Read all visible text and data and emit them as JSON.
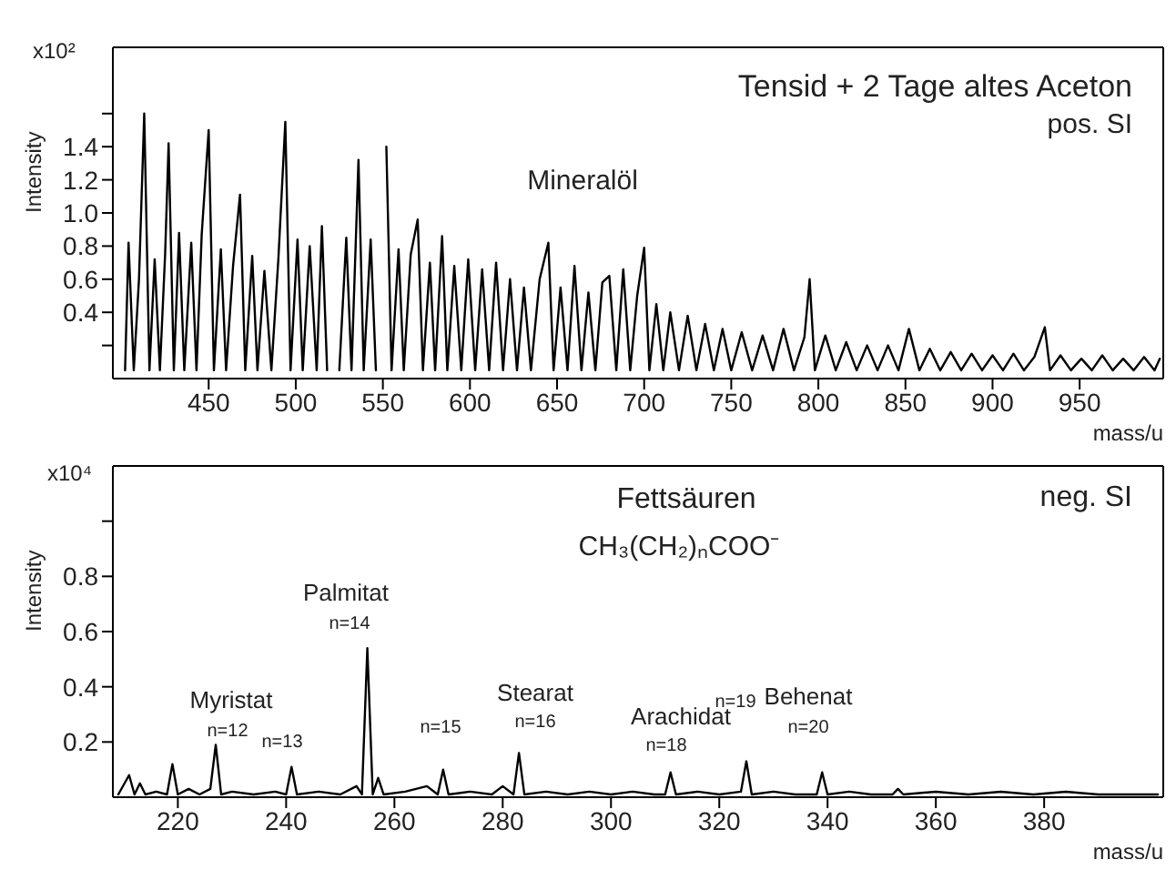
{
  "chart_data": [
    {
      "type": "line",
      "ylabel": "Intensity",
      "xlabel": "mass/u",
      "marker": "none",
      "xlim": [
        395,
        998
      ],
      "ylim": [
        0,
        2.0
      ],
      "xticks": [
        450,
        500,
        550,
        600,
        650,
        700,
        750,
        800,
        850,
        900,
        950
      ],
      "yticks": [
        {
          "value": 0.2,
          "label": null
        },
        {
          "value": 0.4,
          "label": "0.4"
        },
        {
          "value": 0.6,
          "label": "0.6"
        },
        {
          "value": 0.8,
          "label": "0.8"
        },
        {
          "value": 1.0,
          "label": "1.0"
        },
        {
          "value": 1.2,
          "label": "1.2"
        },
        {
          "value": 1.4,
          "label": "1.4"
        },
        {
          "value": 1.6,
          "label": null
        }
      ],
      "annotations": [
        "x10²",
        "Tensid + 2 Tage altes Aceton",
        "pos. SI",
        "Mineralöl"
      ],
      "series": [
        {
          "color": "#000000",
          "x": [
            402,
            404,
            407,
            410,
            413,
            416,
            419,
            422,
            425,
            427,
            430,
            433,
            436,
            440,
            443,
            446,
            450,
            453,
            457,
            460,
            464,
            468,
            471,
            475,
            478,
            482,
            486,
            490,
            494,
            497,
            501,
            504,
            508,
            512,
            515,
            518,
            522,
            525,
            529,
            532,
            536,
            539,
            543,
            546,
            550,
            552,
            555,
            559,
            562,
            566,
            570,
            573,
            577,
            580,
            584,
            587,
            591,
            595,
            599,
            603,
            607,
            611,
            615,
            619,
            623,
            627,
            631,
            635,
            640,
            645,
            648,
            652,
            656,
            660,
            664,
            668,
            672,
            676,
            680,
            684,
            688,
            692,
            696,
            700,
            703,
            707,
            711,
            715,
            720,
            725,
            730,
            735,
            740,
            745,
            750,
            756,
            762,
            768,
            774,
            780,
            786,
            792,
            795,
            798,
            804,
            810,
            816,
            822,
            828,
            834,
            840,
            846,
            852,
            858,
            864,
            870,
            876,
            882,
            888,
            894,
            900,
            906,
            912,
            918,
            924,
            930,
            933,
            939,
            945,
            951,
            957,
            963,
            969,
            975,
            981,
            987,
            993,
            996
          ],
          "values": [
            0.05,
            0.82,
            0.05,
            0.6,
            1.6,
            0.05,
            0.72,
            0.05,
            0.75,
            1.42,
            0.05,
            0.88,
            0.05,
            0.82,
            0.05,
            0.87,
            1.5,
            0.05,
            0.78,
            0.05,
            0.68,
            1.11,
            0.05,
            0.74,
            0.05,
            0.65,
            0.05,
            0.72,
            1.55,
            0.05,
            0.84,
            0.05,
            0.8,
            0.05,
            0.92,
            0.05,
            null,
            0.05,
            0.85,
            0.05,
            1.32,
            0.05,
            0.84,
            0.05,
            null,
            1.4,
            0.05,
            0.78,
            0.05,
            0.75,
            0.96,
            0.05,
            0.7,
            0.05,
            0.86,
            0.05,
            0.68,
            0.05,
            0.72,
            0.05,
            0.66,
            0.05,
            0.7,
            0.05,
            0.6,
            0.05,
            0.55,
            0.05,
            0.6,
            0.82,
            0.05,
            0.55,
            0.05,
            0.68,
            0.05,
            0.52,
            0.05,
            0.58,
            0.62,
            0.05,
            0.66,
            0.05,
            0.5,
            0.79,
            0.05,
            0.45,
            0.05,
            0.4,
            0.05,
            0.38,
            0.05,
            0.33,
            0.05,
            0.3,
            0.05,
            0.28,
            0.05,
            0.26,
            0.05,
            0.3,
            0.05,
            0.25,
            0.6,
            0.05,
            0.26,
            0.05,
            0.22,
            0.05,
            0.2,
            0.05,
            0.2,
            0.05,
            0.3,
            0.05,
            0.18,
            0.05,
            0.16,
            0.05,
            0.15,
            0.05,
            0.14,
            0.05,
            0.15,
            0.05,
            0.13,
            0.31,
            0.05,
            0.14,
            0.05,
            0.12,
            0.05,
            0.14,
            0.05,
            0.12,
            0.05,
            0.13,
            0.05,
            0.12
          ]
        }
      ]
    },
    {
      "type": "line",
      "ylabel": "Intensity",
      "xlabel": "mass/u",
      "marker": "none",
      "xlim": [
        208,
        402
      ],
      "ylim": [
        0,
        1.2
      ],
      "xticks": [
        220,
        240,
        260,
        280,
        300,
        320,
        340,
        360,
        380
      ],
      "yticks": [
        {
          "value": 0.2,
          "label": "0.2"
        },
        {
          "value": 0.4,
          "label": "0.4"
        },
        {
          "value": 0.6,
          "label": "0.6"
        },
        {
          "value": 0.8,
          "label": "0.8"
        },
        {
          "value": 1.0,
          "label": null
        }
      ],
      "annotations": [
        "x10⁴",
        "Fettsäuren",
        "CH₃(CH₂)ₙCOO⁻",
        "neg. SI",
        "Myristat",
        "n=12",
        "n=13",
        "Palmitat",
        "n=14",
        "n=15",
        "Stearat",
        "n=16",
        "Arachidat",
        "n=18",
        "n=19",
        "Behenat",
        "n=20"
      ],
      "series": [
        {
          "color": "#000000",
          "x": [
            209,
            211,
            212,
            213,
            214,
            216,
            218,
            219,
            220,
            222,
            224,
            226,
            227,
            228,
            230,
            234,
            238,
            240,
            241,
            242,
            246,
            250,
            253,
            254,
            255,
            256,
            257,
            258,
            262,
            266,
            268,
            269,
            270,
            274,
            278,
            280,
            282,
            283,
            284,
            288,
            292,
            296,
            300,
            304,
            308,
            310,
            311,
            312,
            316,
            320,
            324,
            325,
            326,
            330,
            334,
            338,
            339,
            340,
            344,
            348,
            352,
            353,
            354,
            360,
            366,
            372,
            378,
            384,
            390,
            396,
            401
          ],
          "values": [
            0.01,
            0.08,
            0.01,
            0.05,
            0.01,
            0.02,
            0.01,
            0.12,
            0.01,
            0.03,
            0.01,
            0.03,
            0.19,
            0.01,
            0.02,
            0.01,
            0.02,
            0.01,
            0.11,
            0.01,
            0.02,
            0.01,
            0.04,
            0.01,
            0.54,
            0.01,
            0.07,
            0.01,
            0.02,
            0.04,
            0.01,
            0.1,
            0.01,
            0.02,
            0.01,
            0.04,
            0.01,
            0.16,
            0.01,
            0.02,
            0.01,
            0.02,
            0.01,
            0.02,
            0.01,
            0.01,
            0.09,
            0.01,
            0.02,
            0.01,
            0.02,
            0.13,
            0.01,
            0.02,
            0.01,
            0.01,
            0.09,
            0.01,
            0.02,
            0.01,
            0.01,
            0.03,
            0.01,
            0.02,
            0.01,
            0.02,
            0.01,
            0.02,
            0.01,
            0.01,
            0.01
          ]
        }
      ]
    }
  ]
}
